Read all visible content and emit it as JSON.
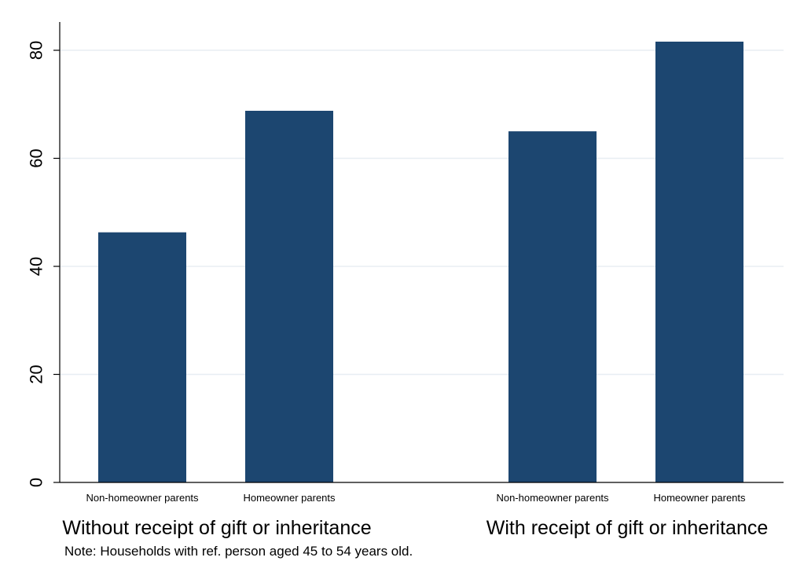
{
  "chart_data": {
    "type": "bar",
    "groups": [
      {
        "label": "Without receipt of gift or inheritance",
        "categories": [
          "Non-homeowner parents",
          "Homeowner parents"
        ],
        "values": [
          46.3,
          68.8
        ]
      },
      {
        "label": "With receipt of gift or inheritance",
        "categories": [
          "Non-homeowner parents",
          "Homeowner parents"
        ],
        "values": [
          65.0,
          81.6
        ]
      }
    ],
    "yticks": [
      0,
      20,
      40,
      60,
      80
    ],
    "ylim": [
      0,
      85
    ],
    "grid": true,
    "bar_color": "#1c4670",
    "grid_color": "#e8eef3",
    "note": "Note: Households with ref. person aged 45 to 54 years old."
  }
}
